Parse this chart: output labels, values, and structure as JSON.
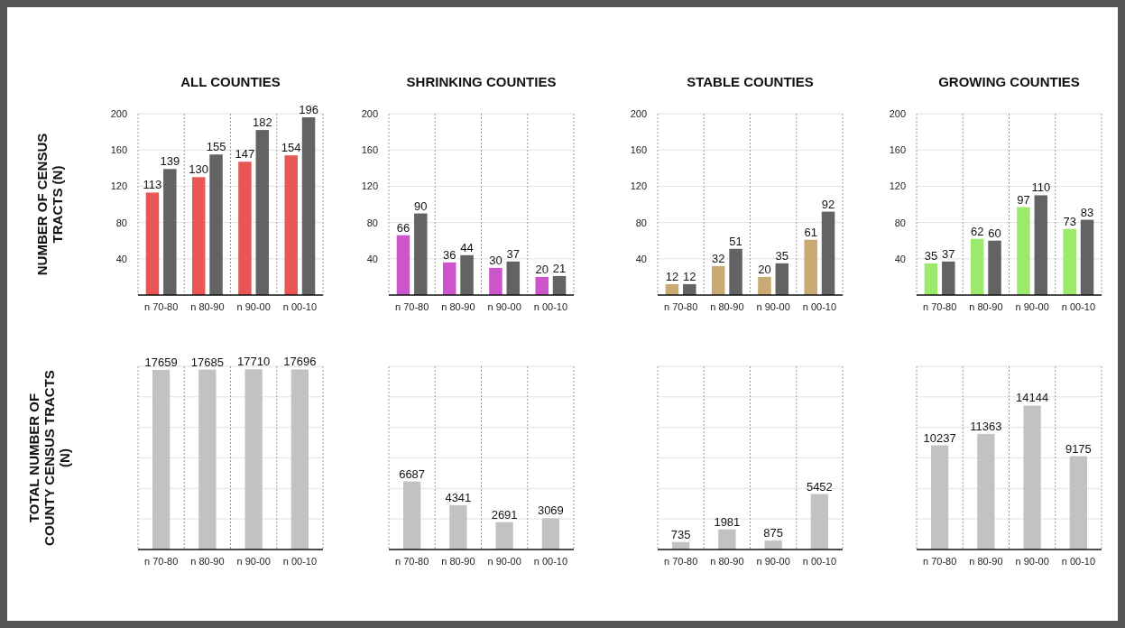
{
  "chart_data": [
    {
      "type": "bar",
      "title": "ALL COUNTIES",
      "ylabel": "NUMBER OF CENSUS TRACTS (N)",
      "categories": [
        "n 70-80",
        "n 80-90",
        "n 90-00",
        "n 00-10"
      ],
      "series": [
        {
          "color": "#e85656",
          "values": [
            113,
            130,
            147,
            154
          ]
        },
        {
          "color": "#636363",
          "values": [
            139,
            155,
            182,
            196
          ]
        }
      ],
      "ylim": [
        0,
        200
      ],
      "yticks": [
        40,
        80,
        120,
        160,
        200
      ],
      "grid": true,
      "data_labels": true
    },
    {
      "type": "bar",
      "title": "SHRINKING COUNTIES",
      "categories": [
        "n 70-80",
        "n 80-90",
        "n 90-00",
        "n 00-10"
      ],
      "series": [
        {
          "color": "#cc55cc",
          "values": [
            66,
            36,
            30,
            20
          ]
        },
        {
          "color": "#636363",
          "values": [
            90,
            44,
            37,
            21
          ]
        }
      ],
      "ylim": [
        0,
        200
      ],
      "yticks": [
        40,
        80,
        120,
        160,
        200
      ],
      "grid": true,
      "data_labels": true
    },
    {
      "type": "bar",
      "title": "STABLE COUNTIES",
      "categories": [
        "n 70-80",
        "n 80-90",
        "n 90-00",
        "n 00-10"
      ],
      "series": [
        {
          "color": "#c9aa72",
          "values": [
            12,
            32,
            20,
            61
          ]
        },
        {
          "color": "#636363",
          "values": [
            12,
            51,
            35,
            92
          ]
        }
      ],
      "ylim": [
        0,
        200
      ],
      "yticks": [
        40,
        80,
        120,
        160,
        200
      ],
      "grid": true,
      "data_labels": true
    },
    {
      "type": "bar",
      "title": "GROWING COUNTIES",
      "categories": [
        "n 70-80",
        "n 80-90",
        "n 90-00",
        "n 00-10"
      ],
      "series": [
        {
          "color": "#9bea6b",
          "values": [
            35,
            62,
            97,
            73
          ]
        },
        {
          "color": "#636363",
          "values": [
            37,
            60,
            110,
            83
          ]
        }
      ],
      "ylim": [
        0,
        200
      ],
      "yticks": [
        40,
        80,
        120,
        160,
        200
      ],
      "grid": true,
      "data_labels": true
    },
    {
      "type": "bar",
      "ylabel": "TOTAL NUMBER OF COUNTY CENSUS TRACTS (N)",
      "categories": [
        "n 70-80",
        "n 80-90",
        "n 90-00",
        "n 00-10"
      ],
      "series": [
        {
          "color": "#c2c2c2",
          "values": [
            17659,
            17685,
            17710,
            17696
          ]
        }
      ],
      "ylim": [
        0,
        18000
      ],
      "yticks": [
        {
          "value": 3000,
          "label": null
        },
        {
          "value": 6000,
          "label": null
        },
        {
          "value": 9000,
          "label": null
        },
        {
          "value": 12000,
          "label": null
        },
        {
          "value": 15000,
          "label": null
        },
        {
          "value": 18000,
          "label": null
        }
      ],
      "grid": true,
      "data_labels": true,
      "tick_labels": "x"
    },
    {
      "type": "bar",
      "categories": [
        "n 70-80",
        "n 80-90",
        "n 90-00",
        "n 00-10"
      ],
      "series": [
        {
          "color": "#c2c2c2",
          "values": [
            6687,
            4341,
            2691,
            3069
          ]
        }
      ],
      "ylim": [
        0,
        18000
      ],
      "yticks": [
        {
          "value": 3000,
          "label": null
        },
        {
          "value": 6000,
          "label": null
        },
        {
          "value": 9000,
          "label": null
        },
        {
          "value": 12000,
          "label": null
        },
        {
          "value": 15000,
          "label": null
        },
        {
          "value": 18000,
          "label": null
        }
      ],
      "grid": true,
      "data_labels": true,
      "tick_labels": "x"
    },
    {
      "type": "bar",
      "categories": [
        "n 70-80",
        "n 80-90",
        "n 90-00",
        "n 00-10"
      ],
      "series": [
        {
          "color": "#c2c2c2",
          "values": [
            735,
            1981,
            875,
            5452
          ]
        }
      ],
      "ylim": [
        0,
        18000
      ],
      "yticks": [
        {
          "value": 3000,
          "label": null
        },
        {
          "value": 6000,
          "label": null
        },
        {
          "value": 9000,
          "label": null
        },
        {
          "value": 12000,
          "label": null
        },
        {
          "value": 15000,
          "label": null
        },
        {
          "value": 18000,
          "label": null
        }
      ],
      "grid": true,
      "data_labels": true,
      "tick_labels": "x"
    },
    {
      "type": "bar",
      "categories": [
        "n 70-80",
        "n 80-90",
        "n 90-00",
        "n 00-10"
      ],
      "series": [
        {
          "color": "#c2c2c2",
          "values": [
            10237,
            11363,
            14144,
            9175
          ]
        }
      ],
      "ylim": [
        0,
        18000
      ],
      "yticks": [
        {
          "value": 3000,
          "label": null
        },
        {
          "value": 6000,
          "label": null
        },
        {
          "value": 9000,
          "label": null
        },
        {
          "value": 12000,
          "label": null
        },
        {
          "value": 15000,
          "label": null
        },
        {
          "value": 18000,
          "label": null
        }
      ],
      "grid": true,
      "data_labels": true,
      "tick_labels": "x"
    }
  ]
}
